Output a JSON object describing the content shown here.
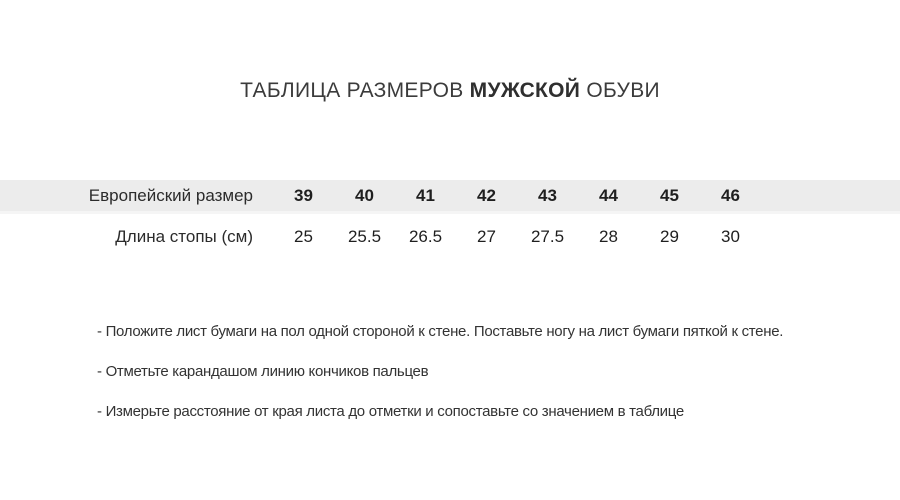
{
  "title": {
    "prefix": "ТАБЛИЦА РАЗМЕРОВ ",
    "bold": "МУЖСКОЙ",
    "suffix": " ОБУВИ"
  },
  "table": {
    "row1_label": "Европейский размер",
    "row2_label": "Длина стопы (см)",
    "sizes": [
      "39",
      "40",
      "41",
      "42",
      "43",
      "44",
      "45",
      "46"
    ],
    "lengths": [
      "25",
      "25.5",
      "26.5",
      "27",
      "27.5",
      "28",
      "29",
      "30"
    ]
  },
  "instructions": [
    "- Положите лист бумаги на пол одной стороной к стене. Поставьте ногу на лист бумаги пяткой к стене.",
    "- Отметьте карандашом линию кончиков пальцев",
    "- Измерьте расстояние от края листа до отметки и сопоставьте со значением в таблице"
  ],
  "colors": {
    "header_band": "#ececec",
    "title_text": "#3b3b3b",
    "table_text": "#1f1f1f",
    "instruction_text": "#333333"
  }
}
